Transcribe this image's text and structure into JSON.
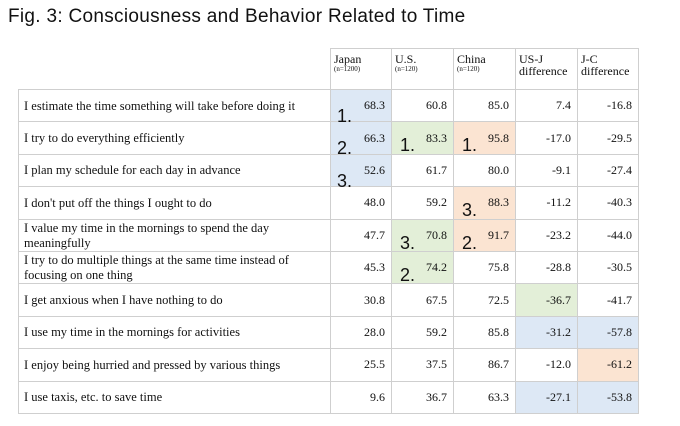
{
  "title": "Fig. 3: Consciousness and Behavior Related to Time",
  "chart_data": {
    "type": "table",
    "columns": [
      {
        "label": "Japan",
        "n": "(n=1200)"
      },
      {
        "label": "U.S.",
        "n": "(n=120)"
      },
      {
        "label": "China",
        "n": "(n=120)"
      },
      {
        "label": "US-J difference",
        "n": ""
      },
      {
        "label": "J-C difference",
        "n": ""
      }
    ],
    "rows": [
      {
        "label": "I estimate the time something will take before doing it",
        "values": [
          "68.3",
          "60.8",
          "85.0",
          "7.4",
          "-16.8"
        ],
        "ranks": [
          "1.",
          "",
          "",
          "",
          ""
        ],
        "highlight": [
          "blue",
          "",
          "",
          "",
          ""
        ]
      },
      {
        "label": "I try to do everything efficiently",
        "values": [
          "66.3",
          "83.3",
          "95.8",
          "-17.0",
          "-29.5"
        ],
        "ranks": [
          "2.",
          "1.",
          "1.",
          "",
          ""
        ],
        "highlight": [
          "blue",
          "green",
          "orange",
          "",
          ""
        ]
      },
      {
        "label": "I plan my schedule for each day in advance",
        "values": [
          "52.6",
          "61.7",
          "80.0",
          "-9.1",
          "-27.4"
        ],
        "ranks": [
          "3.",
          "",
          "",
          "",
          ""
        ],
        "highlight": [
          "blue",
          "",
          "",
          "",
          ""
        ]
      },
      {
        "label": "I don't put off the things I ought to do",
        "values": [
          "48.0",
          "59.2",
          "88.3",
          "-11.2",
          "-40.3"
        ],
        "ranks": [
          "",
          "",
          "3.",
          "",
          ""
        ],
        "highlight": [
          "",
          "",
          "orange",
          "",
          ""
        ]
      },
      {
        "label": "I value my time in the mornings to spend the day meaningfully",
        "values": [
          "47.7",
          "70.8",
          "91.7",
          "-23.2",
          "-44.0"
        ],
        "ranks": [
          "",
          "3.",
          "2.",
          "",
          ""
        ],
        "highlight": [
          "",
          "green",
          "orange",
          "",
          ""
        ]
      },
      {
        "label": "I try to do multiple things at the same time instead of focusing on one thing",
        "values": [
          "45.3",
          "74.2",
          "75.8",
          "-28.8",
          "-30.5"
        ],
        "ranks": [
          "",
          "2.",
          "",
          "",
          ""
        ],
        "highlight": [
          "",
          "green",
          "",
          "",
          ""
        ]
      },
      {
        "label": "I get anxious when I have nothing to do",
        "values": [
          "30.8",
          "67.5",
          "72.5",
          "-36.7",
          "-41.7"
        ],
        "ranks": [
          "",
          "",
          "",
          "",
          ""
        ],
        "highlight": [
          "",
          "",
          "",
          "green",
          ""
        ]
      },
      {
        "label": "I use my time in the mornings for activities",
        "values": [
          "28.0",
          "59.2",
          "85.8",
          "-31.2",
          "-57.8"
        ],
        "ranks": [
          "",
          "",
          "",
          "",
          ""
        ],
        "highlight": [
          "",
          "",
          "",
          "blue",
          "blue"
        ]
      },
      {
        "label": "I enjoy being hurried and pressed by various things",
        "values": [
          "25.5",
          "37.5",
          "86.7",
          "-12.0",
          "-61.2"
        ],
        "ranks": [
          "",
          "",
          "",
          "",
          ""
        ],
        "highlight": [
          "",
          "",
          "",
          "",
          "orange"
        ]
      },
      {
        "label": "I use taxis, etc. to save time",
        "values": [
          "9.6",
          "36.7",
          "63.3",
          "-27.1",
          "-53.8"
        ],
        "ranks": [
          "",
          "",
          "",
          "",
          ""
        ],
        "highlight": [
          "",
          "",
          "",
          "blue",
          "blue"
        ]
      }
    ]
  },
  "colors": {
    "blue": "#dde8f5",
    "green": "#e3efd8",
    "orange": "#fbe4d2"
  }
}
